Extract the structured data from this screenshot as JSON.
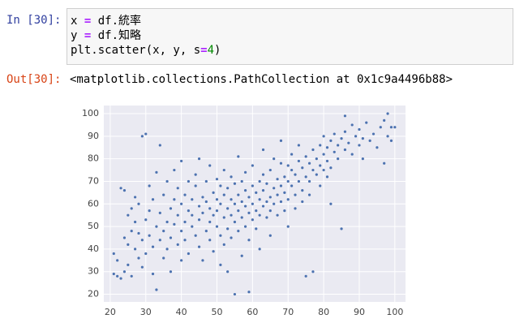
{
  "cell": {
    "in_label": "In [30]:",
    "code": [
      [
        "x ",
        "=",
        " df.統率"
      ],
      [
        "y ",
        "=",
        " df.知略"
      ],
      [
        "plt.scatter(x, y, s",
        "=",
        "4",
        ")"
      ]
    ]
  },
  "output": {
    "label": "Out[30]:",
    "text": "<matplotlib.collections.PathCollection at 0x1c9a4496b88>"
  },
  "chart_data": {
    "type": "scatter",
    "color": "#4c72b0",
    "grid": true,
    "xlim": [
      18.2,
      103
    ],
    "ylim": [
      16.6,
      103.6
    ],
    "xticks": [
      20,
      30,
      40,
      50,
      60,
      70,
      80,
      90,
      100
    ],
    "yticks": [
      20,
      30,
      40,
      50,
      60,
      70,
      80,
      90,
      100
    ],
    "x": [
      21,
      21,
      22,
      22,
      23,
      23,
      24,
      24,
      24,
      25,
      25,
      25,
      26,
      26,
      26,
      27,
      27,
      27,
      28,
      28,
      28,
      29,
      29,
      29,
      30,
      30,
      30,
      31,
      31,
      31,
      32,
      32,
      32,
      33,
      33,
      33,
      34,
      34,
      34,
      35,
      35,
      35,
      36,
      36,
      36,
      37,
      37,
      37,
      38,
      38,
      38,
      39,
      39,
      39,
      40,
      40,
      40,
      40,
      41,
      41,
      41,
      42,
      42,
      42,
      43,
      43,
      43,
      44,
      44,
      44,
      45,
      45,
      45,
      45,
      46,
      46,
      46,
      47,
      47,
      47,
      48,
      48,
      48,
      48,
      49,
      49,
      49,
      50,
      50,
      50,
      50,
      51,
      51,
      51,
      51,
      52,
      52,
      52,
      52,
      53,
      53,
      53,
      53,
      54,
      54,
      54,
      54,
      55,
      55,
      55,
      55,
      56,
      56,
      56,
      56,
      57,
      57,
      57,
      57,
      58,
      58,
      58,
      58,
      59,
      59,
      59,
      59,
      60,
      60,
      60,
      60,
      61,
      61,
      61,
      62,
      62,
      62,
      62,
      63,
      63,
      63,
      63,
      64,
      64,
      64,
      65,
      65,
      65,
      65,
      66,
      66,
      66,
      67,
      67,
      67,
      68,
      68,
      68,
      68,
      69,
      69,
      69,
      70,
      70,
      70,
      70,
      71,
      71,
      71,
      72,
      72,
      72,
      73,
      73,
      73,
      74,
      74,
      74,
      75,
      75,
      75,
      76,
      76,
      76,
      77,
      77,
      77,
      78,
      78,
      79,
      79,
      79,
      80,
      80,
      80,
      81,
      81,
      81,
      82,
      82,
      82,
      83,
      83,
      84,
      84,
      85,
      85,
      86,
      86,
      86,
      87,
      88,
      88,
      89,
      90,
      90,
      91,
      92,
      93,
      94,
      95,
      96,
      97,
      98,
      98,
      99,
      100,
      99,
      97,
      91
    ],
    "y": [
      38,
      29,
      28,
      35,
      67,
      27,
      30,
      45,
      66,
      42,
      55,
      33,
      48,
      58,
      28,
      40,
      52,
      63,
      36,
      47,
      60,
      90,
      44,
      32,
      91,
      53,
      38,
      57,
      46,
      68,
      41,
      62,
      29,
      50,
      74,
      22,
      56,
      44,
      86,
      48,
      64,
      36,
      52,
      70,
      40,
      45,
      58,
      30,
      62,
      51,
      75,
      42,
      55,
      67,
      48,
      60,
      35,
      79,
      52,
      64,
      44,
      57,
      70,
      38,
      50,
      62,
      55,
      46,
      68,
      73,
      53,
      59,
      41,
      80,
      56,
      63,
      35,
      48,
      61,
      70,
      52,
      58,
      44,
      77,
      55,
      65,
      39,
      50,
      62,
      71,
      57,
      46,
      60,
      68,
      33,
      54,
      64,
      75,
      42,
      58,
      49,
      67,
      30,
      62,
      55,
      72,
      45,
      20,
      60,
      52,
      69,
      57,
      64,
      48,
      81,
      54,
      61,
      70,
      37,
      59,
      50,
      66,
      74,
      21,
      56,
      63,
      44,
      60,
      53,
      68,
      77,
      57,
      65,
      49,
      62,
      70,
      55,
      40,
      59,
      66,
      73,
      84,
      61,
      54,
      69,
      63,
      57,
      75,
      46,
      67,
      60,
      80,
      64,
      71,
      55,
      68,
      61,
      78,
      88,
      65,
      72,
      57,
      70,
      62,
      77,
      50,
      68,
      75,
      82,
      64,
      73,
      58,
      70,
      79,
      86,
      66,
      76,
      61,
      72,
      81,
      28,
      70,
      78,
      64,
      75,
      84,
      30,
      73,
      80,
      77,
      86,
      68,
      75,
      82,
      90,
      79,
      72,
      85,
      88,
      76,
      60,
      83,
      91,
      80,
      86,
      49,
      89,
      84,
      99,
      92,
      87,
      82,
      95,
      90,
      86,
      93,
      89,
      96,
      88,
      91,
      85,
      94,
      97,
      100,
      90,
      94,
      94,
      88,
      78,
      80
    ]
  }
}
